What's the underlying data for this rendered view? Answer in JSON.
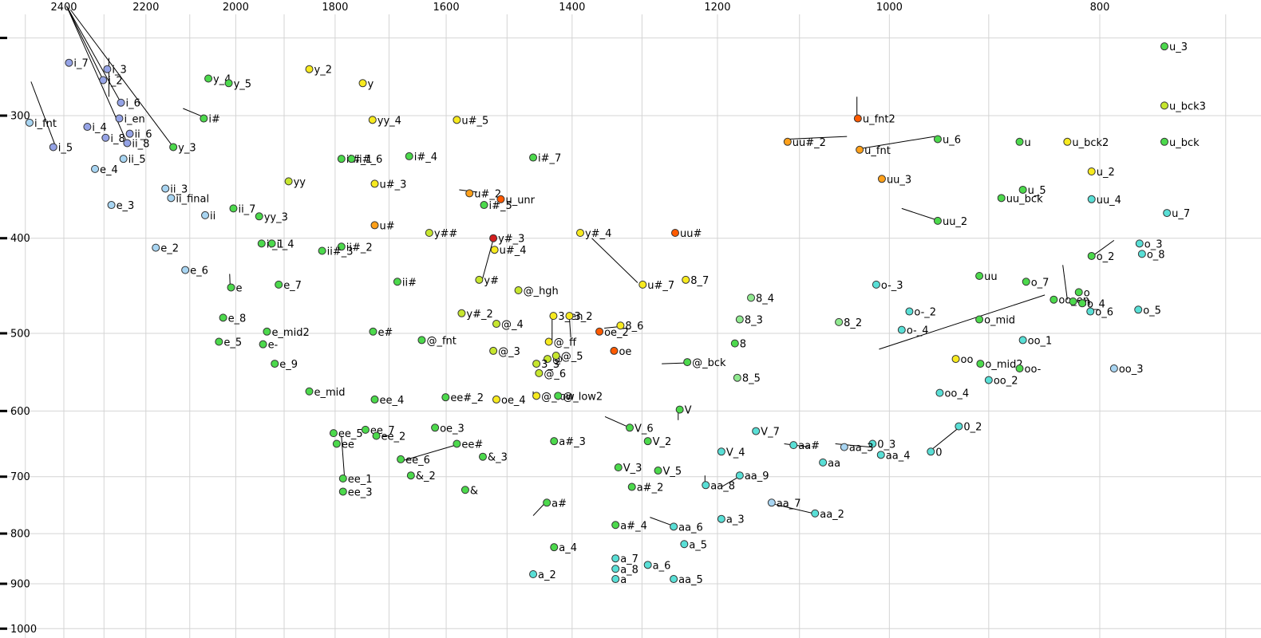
{
  "chart_data": {
    "type": "scatter",
    "title": "",
    "xlabel": "",
    "ylabel": "",
    "x_axis": {
      "direction": "reversed",
      "scale": "log",
      "tick_labels": [
        "2400",
        "2200",
        "2000",
        "1800",
        "1600",
        "1400",
        "1200",
        "1000",
        "800"
      ],
      "tick_values": [
        2400,
        2200,
        2000,
        1800,
        1600,
        1400,
        1200,
        1000,
        800
      ],
      "grid_values": [
        2500,
        2400,
        2300,
        2200,
        2100,
        2000,
        1900,
        1800,
        1700,
        1600,
        1500,
        1400,
        1300,
        1200,
        1100,
        1000,
        900,
        800,
        700
      ]
    },
    "y_axis": {
      "direction": "reversed",
      "scale": "log",
      "tick_labels": [
        "300",
        "400",
        "500",
        "600",
        "700",
        "800",
        "900",
        "1000"
      ],
      "tick_values": [
        300,
        400,
        500,
        600,
        700,
        800,
        900,
        1000
      ],
      "grid_values": [
        250,
        300,
        400,
        500,
        600,
        700,
        800,
        900,
        1000
      ]
    },
    "calibration": {
      "x": [
        [
          2400,
          80
        ],
        [
          800,
          1378
        ]
      ],
      "y": [
        [
          300,
          145
        ],
        [
          900,
          732
        ]
      ]
    },
    "grid": true,
    "legend": false,
    "palette": {
      "blue": "#95a3e6",
      "lightblue": "#a8d5f2",
      "cyan": "#59dfd6",
      "green": "#4cd94c",
      "lightgreen": "#8fe98f",
      "yellowgreen": "#c6e62e",
      "yellow": "#f7ea1f",
      "orange": "#ffa019",
      "orangered": "#ff5a00",
      "red": "#d31f1f"
    },
    "points": [
      [
        "i_7",
        2387,
        265,
        "blue"
      ],
      [
        "i_2",
        2302,
        276,
        "blue"
      ],
      [
        "i_3",
        2292,
        269,
        "blue"
      ],
      [
        "i_6",
        2259,
        291,
        "blue"
      ],
      [
        "i_en",
        2263,
        302,
        "blue"
      ],
      [
        "i_4",
        2341,
        308,
        "blue"
      ],
      [
        "i_8",
        2296,
        316,
        "blue"
      ],
      [
        "ii_6",
        2238,
        313,
        "blue"
      ],
      [
        "ii_8",
        2244,
        320,
        "blue"
      ],
      [
        "i_5",
        2427,
        323,
        "blue"
      ],
      [
        "i_fnt",
        2489,
        305,
        "lightblue"
      ],
      [
        "ii_5",
        2253,
        332,
        "lightblue"
      ],
      [
        "e_4",
        2322,
        340,
        "lightblue"
      ],
      [
        "ii_3",
        2155,
        356,
        "lightblue"
      ],
      [
        "ii_final",
        2142,
        364,
        "lightblue"
      ],
      [
        "e_3",
        2282,
        370,
        "lightblue"
      ],
      [
        "ii",
        2066,
        379,
        "lightblue"
      ],
      [
        "e_2",
        2177,
        409,
        "lightblue"
      ],
      [
        "e_6",
        2110,
        431,
        "lightblue"
      ],
      [
        "y_4",
        2059,
        275,
        "green"
      ],
      [
        "y_5",
        2015,
        278,
        "green"
      ],
      [
        "i#",
        2069,
        302,
        "green"
      ],
      [
        "y_3",
        2137,
        323,
        "green"
      ],
      [
        "ii_7",
        2005,
        373,
        "green"
      ],
      [
        "yy_3",
        1951,
        380,
        "green"
      ],
      [
        "ii_1",
        1946,
        405,
        "green"
      ],
      [
        "ii_4",
        1925,
        405,
        "green"
      ],
      [
        "e",
        2010,
        449,
        "green"
      ],
      [
        "e_7",
        1911,
        446,
        "green"
      ],
      [
        "e_8",
        2027,
        482,
        "green"
      ],
      [
        "e_mid2",
        1935,
        498,
        "green"
      ],
      [
        "e_5",
        2036,
        510,
        "green"
      ],
      [
        "e-",
        1943,
        513,
        "green"
      ],
      [
        "e_9",
        1919,
        537,
        "green"
      ],
      [
        "e_mid",
        1850,
        573,
        "green"
      ],
      [
        "y_2",
        1850,
        269,
        "yellow"
      ],
      [
        "y",
        1748,
        278,
        "yellow"
      ],
      [
        "yy_4",
        1730,
        303,
        "yellow"
      ],
      [
        "u#_5",
        1582,
        303,
        "yellow"
      ],
      [
        "yy",
        1891,
        350,
        "yellowgreen"
      ],
      [
        "ii#_1",
        1788,
        332,
        "green"
      ],
      [
        "ii#_6",
        1769,
        332,
        "green"
      ],
      [
        "i#_4",
        1664,
        330,
        "green"
      ],
      [
        "u#_3",
        1726,
        352,
        "yellow"
      ],
      [
        "i#_7",
        1459,
        331,
        "green"
      ],
      [
        "u#_2",
        1561,
        360,
        "orange"
      ],
      [
        "i#_5",
        1537,
        370,
        "green"
      ],
      [
        "u_unr",
        1510,
        365,
        "orangered"
      ],
      [
        "u#",
        1726,
        388,
        "orange"
      ],
      [
        "y##",
        1629,
        395,
        "yellowgreen"
      ],
      [
        "y#_4",
        1388,
        395,
        "yellow"
      ],
      [
        "uu#",
        1255,
        395,
        "orangered"
      ],
      [
        "y#_3",
        1522,
        400,
        "red"
      ],
      [
        "u#_4",
        1520,
        411,
        "yellow"
      ],
      [
        "ii#_2",
        1788,
        408,
        "green"
      ],
      [
        "ii#_3",
        1825,
        412,
        "green"
      ],
      [
        "ii#",
        1685,
        443,
        "green"
      ],
      [
        "y#",
        1545,
        441,
        "yellowgreen"
      ],
      [
        "@_hgh",
        1482,
        452,
        "yellowgreen"
      ],
      [
        "u#_7",
        1299,
        446,
        "yellow"
      ],
      [
        "8_7",
        1241,
        441,
        "yellow"
      ],
      [
        "y#_2",
        1574,
        477,
        "yellowgreen"
      ],
      [
        "@_4",
        1517,
        489,
        "yellowgreen"
      ],
      [
        "e#",
        1729,
        498,
        "green"
      ],
      [
        "@_fnt",
        1642,
        508,
        "green"
      ],
      [
        "@_3",
        1522,
        521,
        "yellowgreen"
      ],
      [
        "3_en",
        1428,
        480,
        "yellow"
      ],
      [
        "3_2",
        1404,
        480,
        "yellow"
      ],
      [
        "@_ff",
        1435,
        510,
        "yellow"
      ],
      [
        "@",
        1437,
        531,
        "yellowgreen"
      ],
      [
        "@_5",
        1424,
        527,
        "yellowgreen"
      ],
      [
        "3_3",
        1454,
        537,
        "yellowgreen"
      ],
      [
        "@_6",
        1450,
        549,
        "yellowgreen"
      ],
      [
        "@_low",
        1454,
        579,
        "yellow"
      ],
      [
        "@_low2",
        1421,
        579,
        "green"
      ],
      [
        "oe_4",
        1517,
        584,
        "yellow"
      ],
      [
        "oe_2",
        1360,
        498,
        "orangered"
      ],
      [
        "oe",
        1339,
        521,
        "orangered"
      ],
      [
        "8_6",
        1330,
        491,
        "yellow"
      ],
      [
        "8_4",
        1158,
        460,
        "lightgreen"
      ],
      [
        "8_3",
        1172,
        484,
        "lightgreen"
      ],
      [
        "8",
        1178,
        512,
        "green"
      ],
      [
        "8_5",
        1175,
        555,
        "lightgreen"
      ],
      [
        "8_2",
        1055,
        487,
        "lightgreen"
      ],
      [
        "@_bck",
        1239,
        535,
        "green"
      ],
      [
        "u_3",
        747,
        255,
        "green"
      ],
      [
        "u_bck3",
        747,
        293,
        "yellowgreen"
      ],
      [
        "u_bck",
        747,
        319,
        "green"
      ],
      [
        "u_bck2",
        828,
        319,
        "yellow"
      ],
      [
        "u",
        871,
        319,
        "green"
      ],
      [
        "u_6",
        950,
        317,
        "green"
      ],
      [
        "u_2",
        807,
        342,
        "yellow"
      ],
      [
        "u_5",
        868,
        357,
        "green"
      ],
      [
        "uu_bck",
        888,
        364,
        "green"
      ],
      [
        "uu_4",
        807,
        365,
        "cyan"
      ],
      [
        "u_7",
        745,
        377,
        "cyan"
      ],
      [
        "u_fnt2",
        1034,
        302,
        "orangered"
      ],
      [
        "uu#_2",
        1114,
        319,
        "orange"
      ],
      [
        "u_fnt",
        1032,
        325,
        "orange"
      ],
      [
        "uu_3",
        1008,
        348,
        "orange"
      ],
      [
        "uu_2",
        950,
        384,
        "green"
      ],
      [
        "o-_3",
        1014,
        446,
        "cyan"
      ],
      [
        "uu",
        909,
        437,
        "green"
      ],
      [
        "o_7",
        865,
        443,
        "green"
      ],
      [
        "o_2",
        807,
        417,
        "green"
      ],
      [
        "o_3",
        767,
        405,
        "cyan"
      ],
      [
        "o_8",
        765,
        415,
        "cyan"
      ],
      [
        "oo_en",
        840,
        462,
        "green"
      ],
      [
        "on",
        823,
        464,
        "green"
      ],
      [
        "o_4",
        815,
        466,
        "green"
      ],
      [
        "o",
        818,
        454,
        "green"
      ],
      [
        "o_6",
        808,
        475,
        "cyan"
      ],
      [
        "o_5",
        768,
        473,
        "cyan"
      ],
      [
        "o-_2",
        979,
        475,
        "cyan"
      ],
      [
        "o-_4",
        987,
        496,
        "cyan"
      ],
      [
        "o_mid",
        909,
        484,
        "green"
      ],
      [
        "oo_1",
        868,
        508,
        "cyan"
      ],
      [
        "oo",
        932,
        531,
        "yellow"
      ],
      [
        "o_mid2",
        908,
        537,
        "green"
      ],
      [
        "oo-",
        871,
        543,
        "green"
      ],
      [
        "oo_2",
        900,
        558,
        "cyan"
      ],
      [
        "oo_3",
        788,
        543,
        "lightblue"
      ],
      [
        "oo_4",
        948,
        575,
        "cyan"
      ],
      [
        "0_3",
        1018,
        648,
        "cyan"
      ],
      [
        "aa_3",
        1049,
        653,
        "lightblue"
      ],
      [
        "aa_4",
        1009,
        665,
        "cyan"
      ],
      [
        "0",
        957,
        660,
        "cyan"
      ],
      [
        "0_2",
        929,
        622,
        "cyan"
      ],
      [
        "aa#",
        1107,
        650,
        "cyan"
      ],
      [
        "V_7",
        1152,
        629,
        "cyan"
      ],
      [
        "aa",
        1073,
        677,
        "cyan"
      ],
      [
        "V",
        1249,
        598,
        "green"
      ],
      [
        "V_6",
        1317,
        624,
        "green"
      ],
      [
        "V_2",
        1292,
        644,
        "green"
      ],
      [
        "V_4",
        1195,
        660,
        "cyan"
      ],
      [
        "V_3",
        1333,
        685,
        "green"
      ],
      [
        "V_5",
        1278,
        690,
        "green"
      ],
      [
        "aa_9",
        1172,
        698,
        "cyan"
      ],
      [
        "aa_8",
        1215,
        714,
        "cyan"
      ],
      [
        "a#_2",
        1314,
        717,
        "green"
      ],
      [
        "aa_7",
        1133,
        744,
        "lightblue"
      ],
      [
        "aa_2",
        1082,
        763,
        "cyan"
      ],
      [
        "a_3",
        1195,
        773,
        "cyan"
      ],
      [
        "a#_4",
        1337,
        784,
        "green"
      ],
      [
        "aa_6",
        1257,
        787,
        "cyan"
      ],
      [
        "a_4",
        1427,
        826,
        "green"
      ],
      [
        "a_5",
        1243,
        820,
        "cyan"
      ],
      [
        "a_7",
        1337,
        848,
        "cyan"
      ],
      [
        "a_8",
        1337,
        869,
        "cyan"
      ],
      [
        "a_6",
        1292,
        861,
        "cyan"
      ],
      [
        "a_2",
        1459,
        880,
        "cyan"
      ],
      [
        "a",
        1337,
        890,
        "cyan"
      ],
      [
        "aa_5",
        1257,
        890,
        "cyan"
      ],
      [
        "ee_4",
        1726,
        584,
        "green"
      ],
      [
        "ee#_2",
        1601,
        581,
        "green"
      ],
      [
        "ee_5",
        1803,
        632,
        "green"
      ],
      [
        "ee",
        1797,
        648,
        "green"
      ],
      [
        "ee_7",
        1743,
        627,
        "green"
      ],
      [
        "ee_2",
        1723,
        636,
        "green"
      ],
      [
        "oe_3",
        1619,
        624,
        "green"
      ],
      [
        "ee#",
        1582,
        648,
        "green"
      ],
      [
        "ee_6",
        1679,
        672,
        "green"
      ],
      [
        "&_3",
        1539,
        668,
        "green"
      ],
      [
        "a#_3",
        1427,
        644,
        "green"
      ],
      [
        "&_2",
        1661,
        698,
        "green"
      ],
      [
        "ee_1",
        1785,
        703,
        "green"
      ],
      [
        "ee_3",
        1785,
        725,
        "green"
      ],
      [
        "&",
        1568,
        722,
        "green"
      ],
      [
        "a#",
        1438,
        744,
        "green"
      ]
    ],
    "leader_lines": [
      [
        2393,
        232,
        2302,
        276
      ],
      [
        2393,
        232,
        2259,
        291
      ],
      [
        2393,
        232,
        2244,
        320
      ],
      [
        2383,
        234,
        2137,
        323
      ],
      [
        2288,
        262,
        2288,
        287
      ],
      [
        2485,
        277,
        2423,
        321
      ],
      [
        2115,
        295,
        2069,
        301
      ],
      [
        1035,
        287,
        1035,
        301
      ],
      [
        1114,
        317,
        1046,
        315
      ],
      [
        1030,
        324,
        953,
        315
      ],
      [
        987,
        373,
        952,
        383
      ],
      [
        1522,
        401,
        1540,
        441
      ],
      [
        1578,
        357,
        1548,
        359
      ],
      [
        1371,
        400,
        1306,
        444
      ],
      [
        1011,
        519,
        848,
        457
      ],
      [
        788,
        402,
        805,
        416
      ],
      [
        832,
        426,
        828,
        462
      ],
      [
        1273,
        537,
        1242,
        536
      ],
      [
        1788,
        636,
        1782,
        703
      ],
      [
        1584,
        650,
        1675,
        674
      ],
      [
        1352,
        608,
        1319,
        623
      ],
      [
        1059,
        648,
        1020,
        653
      ],
      [
        957,
        658,
        929,
        624
      ],
      [
        1129,
        747,
        1084,
        763
      ],
      [
        1289,
        770,
        1259,
        785
      ],
      [
        1195,
        717,
        1174,
        701
      ],
      [
        1459,
        767,
        1441,
        745
      ],
      [
        1216,
        698,
        1216,
        714
      ],
      [
        2013,
        435,
        2012,
        448
      ],
      [
        1251,
        596,
        1251,
        613
      ],
      [
        1353,
        494,
        1329,
        492
      ],
      [
        1459,
        573,
        1459,
        581
      ],
      [
        1430,
        482,
        1430,
        508
      ],
      [
        1404,
        482,
        1402,
        505
      ],
      [
        1118,
        648,
        1088,
        653
      ]
    ],
    "style": {
      "grid_color": "#d4d4d4",
      "dot_radius": 4.5,
      "dot_stroke": "#333333",
      "label_color": "#000000",
      "leader_color": "#000000",
      "tick_color": "#000000"
    }
  }
}
